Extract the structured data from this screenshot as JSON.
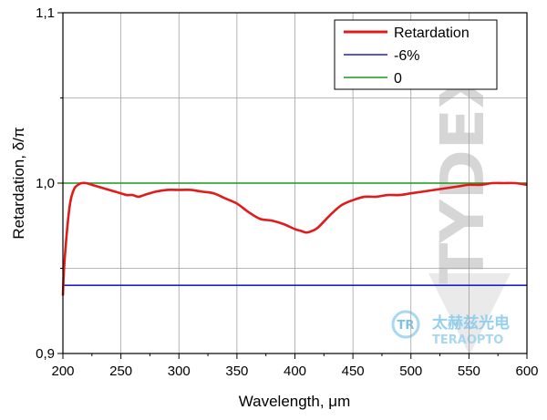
{
  "chart_data": {
    "type": "line",
    "title": "",
    "xlabel": "Wavelength, μm",
    "ylabel": "Retardation, δ/π",
    "xlim": [
      200,
      600
    ],
    "ylim": [
      0.9,
      1.1
    ],
    "x_ticks": [
      200,
      250,
      300,
      350,
      400,
      450,
      500,
      550,
      600
    ],
    "x_tick_labels": [
      "200",
      "250",
      "300",
      "350",
      "400",
      "450",
      "500",
      "550",
      "600"
    ],
    "y_ticks": [
      0.9,
      1.0,
      1.1
    ],
    "y_tick_labels": [
      "0,9",
      "1,0",
      "1,1"
    ],
    "grid": true,
    "legend_position": "top-right",
    "series": [
      {
        "name": "Retardation",
        "color": "#e01b1b",
        "x": [
          200,
          201,
          203,
          205,
          207,
          210,
          213,
          216,
          220,
          225,
          230,
          235,
          240,
          245,
          250,
          255,
          260,
          265,
          270,
          280,
          290,
          300,
          310,
          320,
          330,
          340,
          350,
          360,
          370,
          380,
          390,
          400,
          405,
          410,
          415,
          420,
          430,
          440,
          450,
          460,
          470,
          480,
          490,
          500,
          510,
          520,
          530,
          540,
          550,
          560,
          570,
          580,
          590,
          600
        ],
        "y": [
          0.934,
          0.95,
          0.968,
          0.982,
          0.991,
          0.997,
          0.999,
          1.0,
          1.0,
          0.999,
          0.998,
          0.997,
          0.996,
          0.995,
          0.994,
          0.993,
          0.993,
          0.992,
          0.993,
          0.995,
          0.996,
          0.996,
          0.996,
          0.995,
          0.994,
          0.991,
          0.988,
          0.983,
          0.979,
          0.978,
          0.976,
          0.973,
          0.972,
          0.971,
          0.972,
          0.974,
          0.981,
          0.987,
          0.99,
          0.992,
          0.992,
          0.993,
          0.993,
          0.994,
          0.995,
          0.996,
          0.997,
          0.998,
          0.999,
          0.999,
          1.0,
          1.0,
          1.0,
          0.999
        ]
      },
      {
        "name": "-6%",
        "color": "#2020c8",
        "x": [
          200,
          600
        ],
        "y": [
          0.94,
          0.94
        ]
      },
      {
        "name": "0",
        "color": "#1a9a1a",
        "x": [
          200,
          600
        ],
        "y": [
          1.0,
          1.0
        ]
      }
    ]
  },
  "watermark": {
    "brand": "TYDEX",
    "cn_text": "太赫兹光电",
    "en_text": "TERAOPTO",
    "logo_text": "TR"
  }
}
